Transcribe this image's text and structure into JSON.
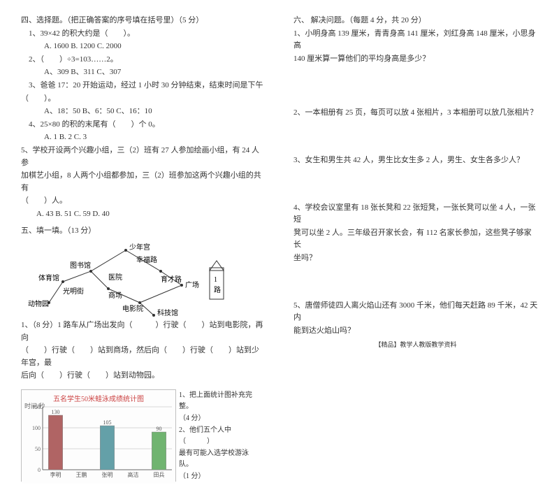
{
  "left": {
    "section4_title": "四、选择题。（把正确答案的序号填在括号里）（5 分）",
    "q1": "1、39×42 的积大约是（　　）。",
    "q1_opts": "A. 1600      B. 1200      C. 2000",
    "q2": "2、（　　）÷3=103……2。",
    "q2_opts": "A、309      B、311      C、307",
    "q3": "3、爸爸 17：20 开始运动，经过 1 小时 30 分钟结束，结束时间是下午",
    "q3b": "（　　）。",
    "q3_opts": "A、18：50      B、6：50      C、16：10",
    "q4": "4、25×80 的积的末尾有（　　）个 0。",
    "q4_opts": "A. 1      B. 2      C. 3",
    "q5": "5、学校开设两个兴趣小组，三（2）班有 27 人参加绘画小组，有 24 人参",
    "q5b": "加棋艺小组，8 人两个小组都参加，三（2）班参加这两个兴趣小组的共有",
    "q5c": "（　　）人。",
    "q5_opts": "A. 43      B. 51      C. 59      D. 40",
    "section5_title": "五、填一填。（13 分）",
    "map": {
      "shao": "少年宫",
      "tushu": "图书馆",
      "xingfu": "幸福路",
      "tiyu": "体育馆",
      "yiyuan": "医院",
      "yucai": "育才路",
      "guangming": "光明街",
      "shangchang": "商场",
      "guangchang": "广场",
      "dongwu": "动物园",
      "dianying": "电影院",
      "keji": "科技馆",
      "lu1": "1",
      "lu2": "路"
    },
    "fill1": "1、（8 分）1 路车从广场出发向（　　　）行驶（　　）站到电影院，再向",
    "fill1b": "（　　）行驶（　　）站到商场，然后向（　　）行驶（　　）站到少年宫，最",
    "fill1c": "后向（　　）行驶（　　）站到动物园。",
    "chart": {
      "title": "五名学生50米蛙泳成绩统计图",
      "ylabel": "时间/秒",
      "ymax": 150,
      "ytick": 50,
      "names": [
        "李明",
        "王鹏",
        "张明",
        "高洁",
        "田兵"
      ],
      "values": [
        130,
        0,
        105,
        0,
        90
      ],
      "show_labels": [
        true,
        false,
        true,
        false,
        true
      ],
      "bar_colors": [
        "#b06464",
        "#b4b078",
        "#64a0a8",
        "#8878b0",
        "#70b470"
      ],
      "bg": "#fdfdfd",
      "grid": "#b0b0b0",
      "title_color": "#cc4444"
    },
    "fill2a": "1、把上面统计图补充完整。",
    "fill2a2": "（4 分）",
    "fill2b": "2、他们五个人中（　　　）",
    "fill2b2": "最有可能入选学校游泳队。",
    "fill2b3": "（1 分）"
  },
  "right": {
    "section6_title": "六、 解决问题。（每题 4 分，共 20 分）",
    "p1a": "1、小明身高 139 厘米，青青身高 141 厘米，刘红身高 148 厘米，小思身高",
    "p1b": "140 厘米算一算他们的平均身高是多少？",
    "p2": "2、一本相册有 25 页，每页可以放 4 张相片，3 本相册可以放几张相片？",
    "p3": "3、女生和男生共 42 人，男生比女生多 2 人，男生、女生各多少人？",
    "p4a": "4、学校会议室里有 18 张长凳和 22 张短凳，一张长凳可以坐 4 人，一张短",
    "p4b": "凳可以坐 2 人。三年级召开家长会，有 112 名家长参加，这些凳子够家长",
    "p4c": "坐吗？",
    "p5a": "5、唐僧师徒四人离火焰山还有 3000 千米，他们每天赶路 89 千米，42 天内",
    "p5b": "能到达火焰山吗？",
    "footer": "【精品】教学人教版教学资料"
  }
}
